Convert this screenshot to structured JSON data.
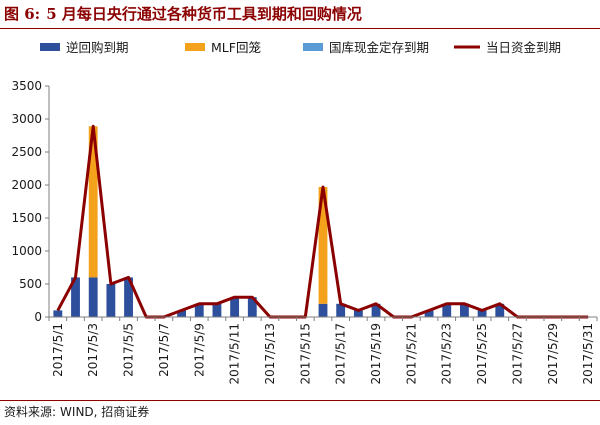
{
  "figure": {
    "number": "图 6:",
    "title": "5 月每日央行通过各种货币工具到期和回购情况"
  },
  "source": {
    "label": "资料来源:",
    "text": "WIND, 招商证券"
  },
  "colors": {
    "title": "#8B0000",
    "reverse_repo": "#2E4F9C",
    "mlf": "#F4A21B",
    "treasury_deposit": "#5B9BD5",
    "total_line": "#8B0000"
  },
  "chart_data": {
    "type": "bar",
    "stacked": true,
    "title": "",
    "xlabel": "",
    "ylabel": "",
    "ylim": [
      0,
      3500
    ],
    "yticks": [
      0,
      500,
      1000,
      1500,
      2000,
      2500,
      3000,
      3500
    ],
    "grid": false,
    "legend": "top",
    "categories": [
      "2017/5/1",
      "2017/5/2",
      "2017/5/3",
      "2017/5/4",
      "2017/5/5",
      "2017/5/6",
      "2017/5/7",
      "2017/5/8",
      "2017/5/9",
      "2017/5/10",
      "2017/5/11",
      "2017/5/12",
      "2017/5/13",
      "2017/5/14",
      "2017/5/15",
      "2017/5/16",
      "2017/5/17",
      "2017/5/18",
      "2017/5/19",
      "2017/5/20",
      "2017/5/21",
      "2017/5/22",
      "2017/5/23",
      "2017/5/24",
      "2017/5/25",
      "2017/5/26",
      "2017/5/27",
      "2017/5/28",
      "2017/5/29",
      "2017/5/30",
      "2017/5/31"
    ],
    "tick_labels": [
      "2017/5/1",
      "2017/5/3",
      "2017/5/5",
      "2017/5/7",
      "2017/5/9",
      "2017/5/11",
      "2017/5/13",
      "2017/5/15",
      "2017/5/17",
      "2017/5/19",
      "2017/5/21",
      "2017/5/23",
      "2017/5/25",
      "2017/5/27",
      "2017/5/29",
      "2017/5/31"
    ],
    "series": [
      {
        "name": "逆回购到期",
        "kind": "bar",
        "color": "#2E4F9C",
        "values": [
          100,
          600,
          600,
          500,
          600,
          0,
          0,
          100,
          200,
          200,
          300,
          300,
          0,
          0,
          0,
          200,
          200,
          100,
          200,
          0,
          0,
          100,
          200,
          200,
          100,
          200,
          0,
          0,
          0,
          0,
          0
        ]
      },
      {
        "name": "MLF回笼",
        "kind": "bar",
        "color": "#F4A21B",
        "values": [
          0,
          0,
          2290,
          0,
          0,
          0,
          0,
          0,
          0,
          0,
          0,
          0,
          0,
          0,
          0,
          1770,
          0,
          0,
          0,
          0,
          0,
          0,
          0,
          0,
          0,
          0,
          0,
          0,
          0,
          0,
          0
        ]
      },
      {
        "name": "国库现金定存到期",
        "kind": "bar",
        "color": "#5B9BD5",
        "values": [
          0,
          0,
          0,
          0,
          0,
          0,
          0,
          0,
          0,
          0,
          0,
          0,
          0,
          0,
          0,
          0,
          0,
          0,
          0,
          0,
          0,
          0,
          0,
          0,
          0,
          0,
          0,
          0,
          0,
          0,
          0
        ]
      },
      {
        "name": "当日资金到期",
        "kind": "line",
        "color": "#8B0000",
        "values": [
          100,
          600,
          2890,
          500,
          600,
          0,
          0,
          100,
          200,
          200,
          300,
          300,
          0,
          0,
          0,
          1970,
          200,
          100,
          200,
          0,
          0,
          100,
          200,
          200,
          100,
          200,
          0,
          0,
          0,
          0,
          0
        ]
      }
    ]
  }
}
